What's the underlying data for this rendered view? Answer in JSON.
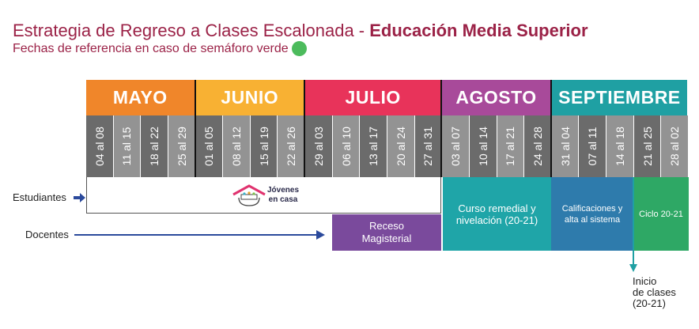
{
  "title": {
    "part1": "Estrategia de Regreso a Clases Escalonada - ",
    "part2": "Educación Media Superior"
  },
  "subtitle": "Fechas de referencia en caso de semáforo verde",
  "colors": {
    "title": "#9b2247",
    "green_dot": "#4cbb5c",
    "week_dark": "#6b6b6b",
    "week_light": "#939393"
  },
  "months": [
    {
      "name": "MAYO",
      "color": "#f0862a",
      "weeks": [
        "04 al 08",
        "11 al 15",
        "18 al 22",
        "25 al 29"
      ]
    },
    {
      "name": "JUNIO",
      "color": "#f8b133",
      "weeks": [
        "01 al 05",
        "08 al 12",
        "15 al 19",
        "22 al 26"
      ]
    },
    {
      "name": "JULIO",
      "color": "#e8335a",
      "weeks": [
        "29 al 03",
        "06 al 10",
        "13 al 17",
        "20 al 24",
        "27 al 31"
      ]
    },
    {
      "name": "AGOSTO",
      "color": "#a84a9a",
      "weeks": [
        "03 al 07",
        "10 al 14",
        "17 al 21",
        "24 al 28"
      ]
    },
    {
      "name": "SEPTIEMBRE",
      "color": "#1fa0a3",
      "weeks": [
        "31 al 04",
        "07 al 11",
        "14 al 18",
        "21 al 25",
        "28 al 02"
      ]
    }
  ],
  "rows": {
    "students": "Estudiantes",
    "teachers": "Docentes"
  },
  "logo": {
    "line1": "Jóvenes",
    "line2": "en casa"
  },
  "blocks": {
    "receso": {
      "line1": "Receso",
      "line2": "Magisterial",
      "color": "#7a4a9c"
    },
    "curso": {
      "line1": "Curso remedial y",
      "line2": "nivelación (20-21)",
      "color": "#1fa5a8"
    },
    "calificaciones": {
      "line1": "Calificaciones y",
      "line2": "alta al sistema",
      "color": "#2e7bac"
    },
    "ciclo": {
      "label": "Ciclo 20-21",
      "color": "#2ea865"
    }
  },
  "start": {
    "line1": "Inicio",
    "line2": "de clases",
    "line3": "(20-21)"
  }
}
